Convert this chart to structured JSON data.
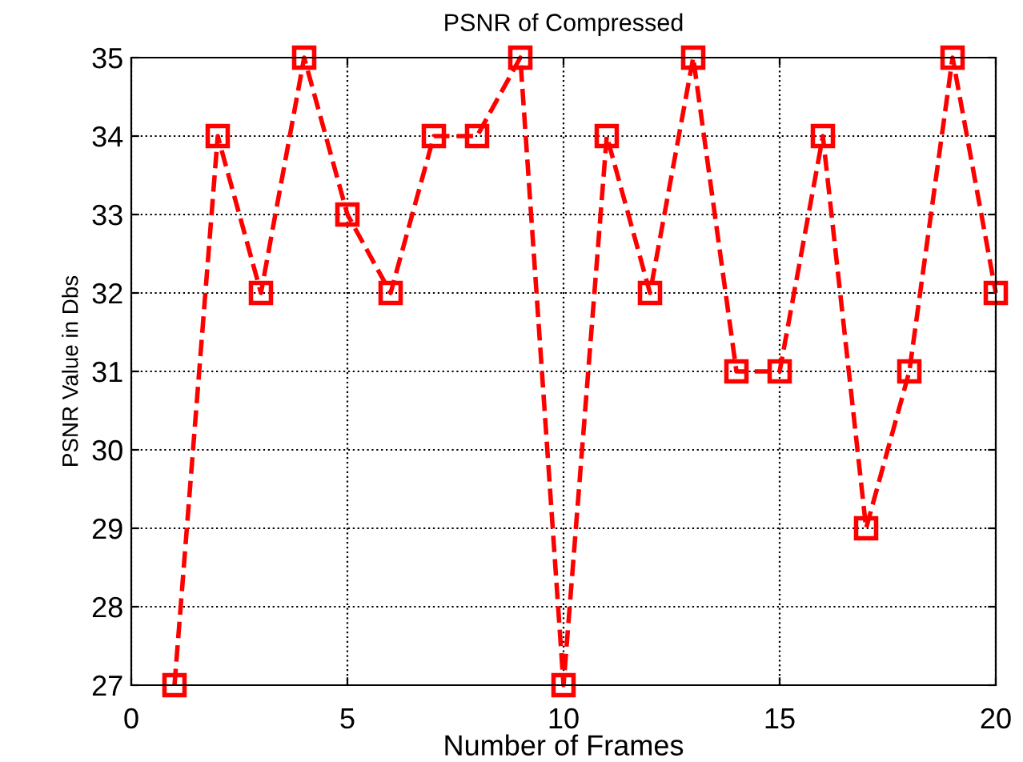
{
  "chart_data": {
    "type": "line",
    "title": "PSNR of Compressed",
    "xlabel": "Number of Frames",
    "ylabel": "PSNR Value in Dbs",
    "x": [
      1,
      2,
      3,
      4,
      5,
      6,
      7,
      8,
      9,
      10,
      11,
      12,
      13,
      14,
      15,
      16,
      17,
      18,
      19,
      20
    ],
    "series": [
      {
        "color": "#ff0000",
        "values": [
          27,
          34,
          32,
          35,
          33,
          32,
          34,
          34,
          35,
          27,
          34,
          32,
          35,
          31,
          31,
          34,
          29,
          31,
          35,
          32
        ]
      }
    ],
    "xlim": [
      0,
      20
    ],
    "xticks": [
      0,
      5,
      10,
      15,
      20
    ],
    "ylim": [
      27,
      35
    ],
    "yticks": [
      27,
      28,
      29,
      30,
      31,
      32,
      33,
      34,
      35
    ],
    "grid": true,
    "marker": "square",
    "line_style": "dashed"
  }
}
